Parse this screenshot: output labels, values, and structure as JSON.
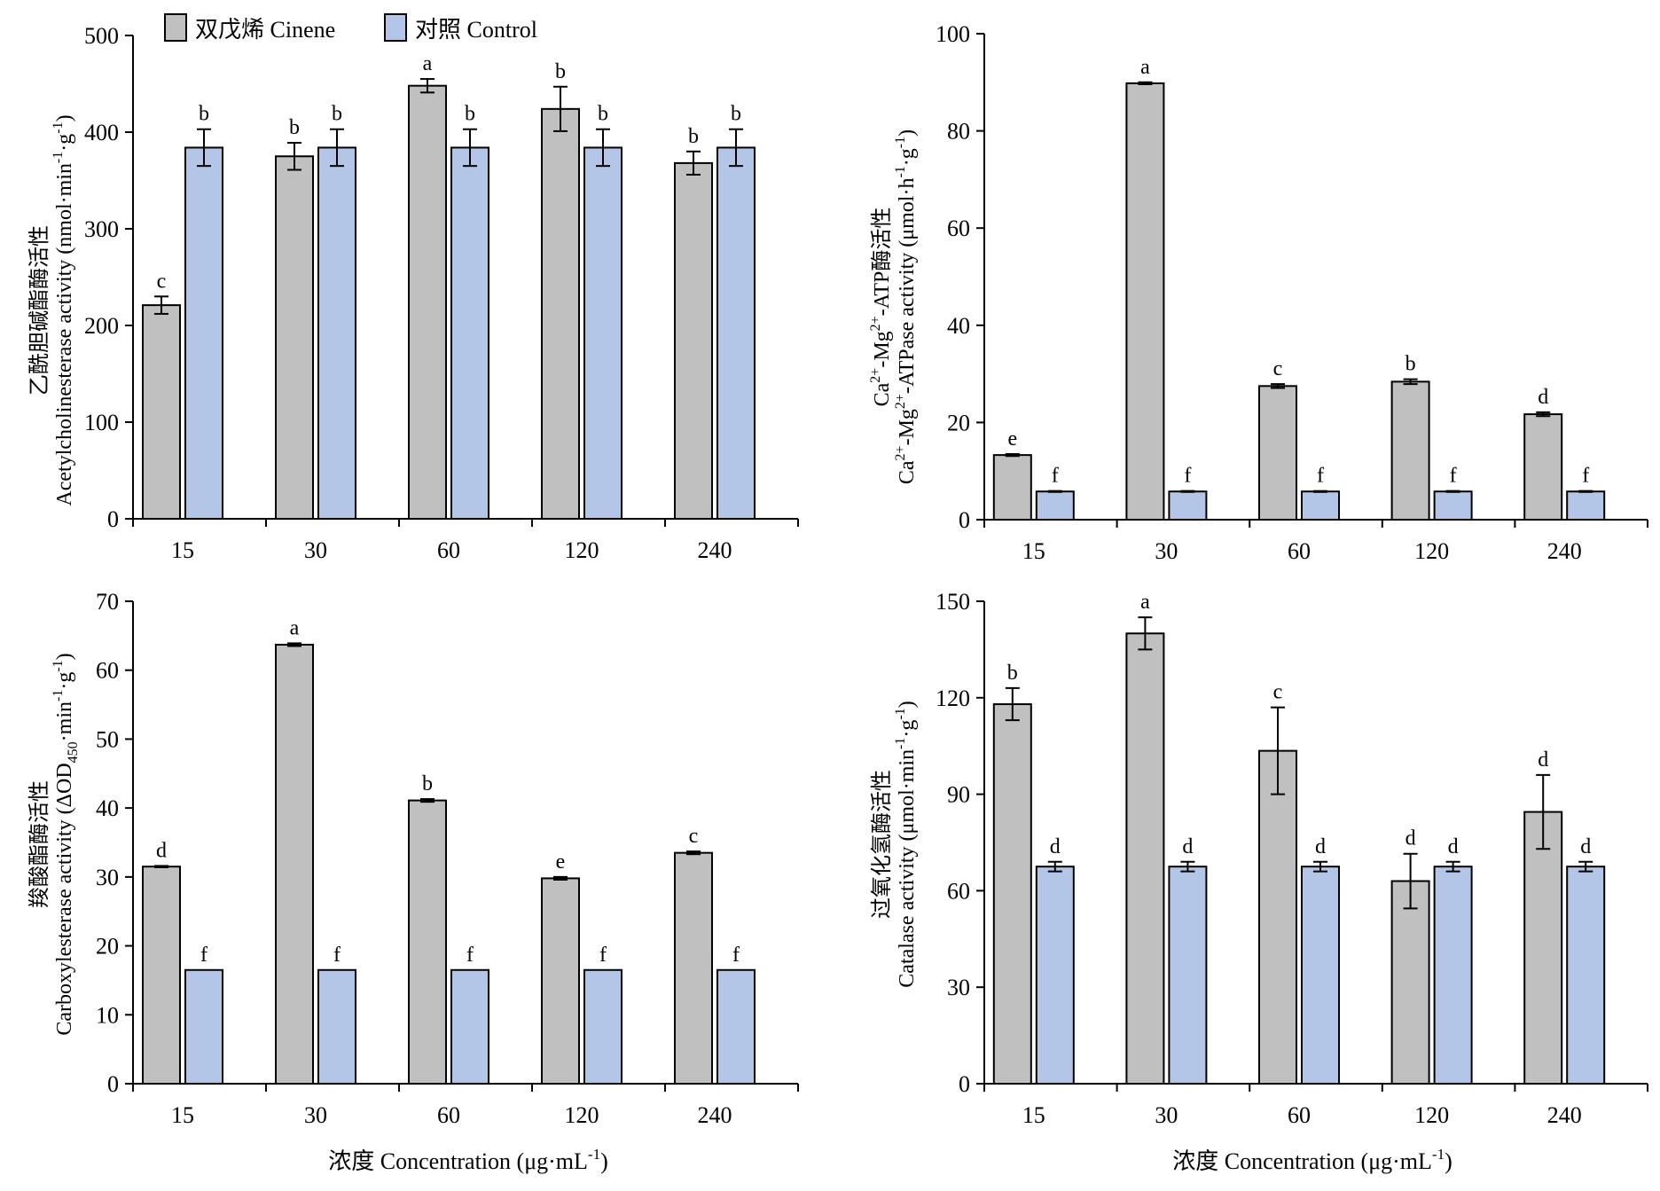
{
  "colors": {
    "cinene": "#c0c0c0",
    "control": "#b4c6e7",
    "axis": "#000000"
  },
  "legend": {
    "cinene": "双戊烯 Cinene",
    "control": "对照 Control"
  },
  "x_axis_label": {
    "main": "浓度 Concentration (μg·mL",
    "sup": "-1",
    "close": ")"
  },
  "chart_data": [
    {
      "type": "bar",
      "panel": "top-left",
      "categories": [
        "15",
        "30",
        "60",
        "120",
        "240"
      ],
      "series": [
        {
          "name": "双戊烯 Cinene",
          "values": [
            221,
            375,
            448,
            424,
            368
          ],
          "errors": [
            9,
            14,
            7,
            23,
            12
          ],
          "letters": [
            "c",
            "b",
            "a",
            "b",
            "b"
          ]
        },
        {
          "name": "对照 Control",
          "values": [
            384,
            384,
            384,
            384,
            384
          ],
          "errors": [
            19,
            19,
            19,
            19,
            19
          ],
          "letters": [
            "b",
            "b",
            "b",
            "b",
            "b"
          ]
        }
      ],
      "ylim": [
        0,
        500
      ],
      "yticks": [
        "0",
        "100",
        "200",
        "300",
        "400",
        "500"
      ],
      "ylabel_cn": "乙酰胆碱酯酶活性",
      "ylabel_en": "Acetylcholinesterase activity (nmol·min",
      "ylabel_sup1": "-1",
      "ylabel_mid": "·g",
      "ylabel_sup2": "-1",
      "ylabel_close": ")"
    },
    {
      "type": "bar",
      "panel": "top-right",
      "categories": [
        "15",
        "30",
        "60",
        "120",
        "240"
      ],
      "series": [
        {
          "name": "双戊烯 Cinene",
          "values": [
            13.3,
            89.8,
            27.5,
            28.4,
            21.7
          ],
          "errors": [
            0.2,
            0.2,
            0.4,
            0.5,
            0.4
          ],
          "letters": [
            "e",
            "a",
            "c",
            "b",
            "d"
          ]
        },
        {
          "name": "对照 Control",
          "values": [
            5.8,
            5.8,
            5.8,
            5.8,
            5.8
          ],
          "errors": [
            0.1,
            0.1,
            0.1,
            0.1,
            0.1
          ],
          "letters": [
            "f",
            "f",
            "f",
            "f",
            "f"
          ]
        }
      ],
      "ylim": [
        0,
        100
      ],
      "yticks": [
        "0",
        "20",
        "40",
        "60",
        "80",
        "100"
      ],
      "ylabel_l1": {
        "ca": "Ca",
        "ca_sup": "2+",
        "mg": "-Mg",
        "mg_sup": "2+",
        "rest": "-ATP酶活性"
      },
      "ylabel_l2": {
        "ca": "Ca",
        "ca_sup": "2+",
        "mg": "-Mg",
        "mg_sup": "2+",
        "rest": "-ATPase activity (μmol·h",
        "sup1": "-1",
        "mid": "·g",
        "sup2": "-1",
        "close": ")"
      }
    },
    {
      "type": "bar",
      "panel": "bottom-left",
      "categories": [
        "15",
        "30",
        "60",
        "120",
        "240"
      ],
      "series": [
        {
          "name": "双戊烯 Cinene",
          "values": [
            31.5,
            63.7,
            41.1,
            29.8,
            33.5
          ],
          "errors": [
            0.1,
            0.2,
            0.2,
            0.2,
            0.2
          ],
          "letters": [
            "d",
            "a",
            "b",
            "e",
            "c"
          ]
        },
        {
          "name": "对照 Control",
          "values": [
            16.5,
            16.5,
            16.5,
            16.5,
            16.5
          ],
          "errors": [
            0,
            0,
            0,
            0,
            0
          ],
          "letters": [
            "f",
            "f",
            "f",
            "f",
            "f"
          ]
        }
      ],
      "ylim": [
        0,
        70
      ],
      "yticks": [
        "0",
        "10",
        "20",
        "30",
        "40",
        "50",
        "60",
        "70"
      ],
      "ylabel_cn": "羧酸酯酶活性",
      "ylabel_en": "Carboxylesterase activity (ΔOD",
      "ylabel_sub": "450",
      "ylabel_mid0": "·min",
      "ylabel_sup1": "-1",
      "ylabel_mid": "·g",
      "ylabel_sup2": "-1",
      "ylabel_close": ")"
    },
    {
      "type": "bar",
      "panel": "bottom-right",
      "categories": [
        "15",
        "30",
        "60",
        "120",
        "240"
      ],
      "series": [
        {
          "name": "双戊烯 Cinene",
          "values": [
            118,
            140,
            103.5,
            63,
            84.5
          ],
          "errors": [
            5,
            5,
            13.5,
            8.5,
            11.5
          ],
          "letters": [
            "b",
            "a",
            "c",
            "d",
            "d"
          ]
        },
        {
          "name": "对照 Control",
          "values": [
            67.5,
            67.5,
            67.5,
            67.5,
            67.5
          ],
          "errors": [
            1.5,
            1.5,
            1.5,
            1.5,
            1.5
          ],
          "letters": [
            "d",
            "d",
            "d",
            "d",
            "d"
          ]
        }
      ],
      "ylim": [
        0,
        150
      ],
      "yticks": [
        "0",
        "30",
        "60",
        "90",
        "120",
        "150"
      ],
      "ylabel_cn": "过氧化氢酶活性",
      "ylabel_en": "Catalase activity (μmol·min",
      "ylabel_sup1": "-1",
      "ylabel_mid": "·g",
      "ylabel_sup2": "-1",
      "ylabel_close": ")"
    }
  ]
}
